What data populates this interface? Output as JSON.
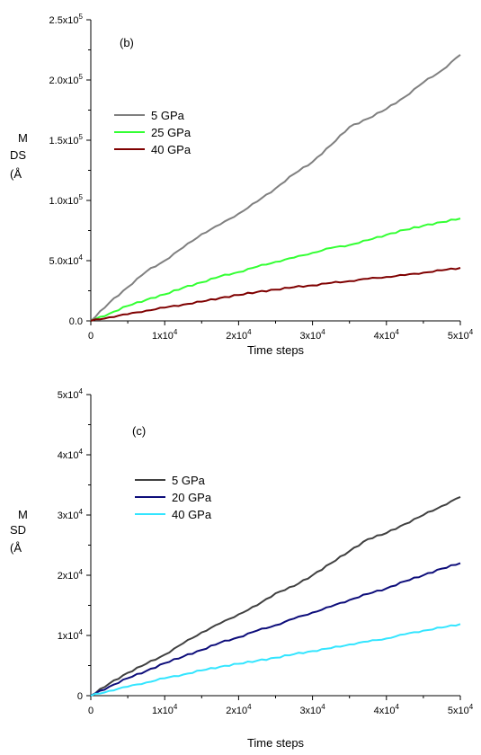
{
  "chart_data": [
    {
      "type": "line",
      "panel_label": "(b)",
      "xlabel": "Time steps",
      "ylabel_lines": [
        "M",
        "DS",
        "(Å"
      ],
      "xlim": [
        0,
        50000
      ],
      "ylim": [
        0,
        250000
      ],
      "x_tick_labels": [
        "0",
        "1x10^4",
        "2x10^4",
        "3x10^4",
        "4x10^4",
        "5x10^4"
      ],
      "x_tick_values": [
        0,
        10000,
        20000,
        30000,
        40000,
        50000
      ],
      "y_tick_labels": [
        "0.0",
        "5.0x10^4",
        "1.0x10^5",
        "1.5x10^5",
        "2.0x10^5",
        "2.5x10^5"
      ],
      "y_tick_values": [
        0,
        50000,
        100000,
        150000,
        200000,
        250000
      ],
      "legend_position": "upper-left",
      "grid": false,
      "x": [
        0,
        2500,
        5000,
        7500,
        10000,
        12500,
        15000,
        17500,
        20000,
        22500,
        25000,
        27500,
        30000,
        32500,
        35000,
        37500,
        40000,
        42500,
        45000,
        47500,
        50000
      ],
      "series": [
        {
          "name": "5 GPa",
          "color": "#808080",
          "values": [
            0,
            15000,
            28000,
            41000,
            50000,
            61000,
            72000,
            80000,
            89000,
            99000,
            110000,
            122000,
            132000,
            146000,
            161000,
            168000,
            176000,
            186000,
            198000,
            208000,
            221000
          ]
        },
        {
          "name": "25 GPa",
          "color": "#33ff33",
          "values": [
            0,
            6000,
            12500,
            17500,
            22000,
            27500,
            32000,
            37000,
            40500,
            45000,
            49000,
            52500,
            56500,
            60500,
            63000,
            67000,
            71500,
            75500,
            79000,
            82000,
            85000
          ]
        },
        {
          "name": "40 GPa",
          "color": "#7f0000",
          "values": [
            0,
            3000,
            5500,
            8500,
            11000,
            13500,
            16000,
            19000,
            21500,
            24000,
            26000,
            28000,
            29500,
            31500,
            33000,
            35000,
            36500,
            38000,
            40000,
            42000,
            44000
          ]
        }
      ]
    },
    {
      "type": "line",
      "panel_label": "(c)",
      "xlabel": "Time steps",
      "ylabel_lines": [
        "M",
        "SD",
        "(Å"
      ],
      "xlim": [
        0,
        50000
      ],
      "ylim": [
        0,
        50000
      ],
      "x_tick_labels": [
        "0",
        "1x10^4",
        "2x10^4",
        "3x10^4",
        "4x10^4",
        "5x10^4"
      ],
      "x_tick_values": [
        0,
        10000,
        20000,
        30000,
        40000,
        50000
      ],
      "y_tick_labels": [
        "0",
        "1x10^4",
        "2x10^4",
        "3x10^4",
        "4x10^4",
        "5x10^4"
      ],
      "y_tick_values": [
        0,
        10000,
        20000,
        30000,
        40000,
        50000
      ],
      "legend_position": "upper-left",
      "grid": false,
      "x": [
        0,
        2500,
        5000,
        7500,
        10000,
        12500,
        15000,
        17500,
        20000,
        22500,
        25000,
        27500,
        30000,
        32500,
        35000,
        37500,
        40000,
        42500,
        45000,
        47500,
        50000
      ],
      "series": [
        {
          "name": "5 GPa",
          "color": "#404040",
          "values": [
            0,
            2000,
            3800,
            5300,
            6800,
            8700,
            10500,
            12000,
            13500,
            15000,
            17000,
            18200,
            20000,
            22000,
            24000,
            26000,
            27000,
            28500,
            30000,
            31500,
            33000
          ]
        },
        {
          "name": "20 GPa",
          "color": "#0d0d7a",
          "values": [
            0,
            1500,
            2900,
            4100,
            5400,
            6500,
            7600,
            8800,
            9700,
            10800,
            11700,
            12800,
            13800,
            14800,
            15900,
            16900,
            17800,
            19000,
            20000,
            21100,
            22000
          ]
        },
        {
          "name": "40 GPa",
          "color": "#33e5ff",
          "values": [
            0,
            800,
            1500,
            2200,
            2900,
            3500,
            4200,
            4800,
            5300,
            5800,
            6300,
            6900,
            7400,
            7900,
            8500,
            9000,
            9500,
            10200,
            10800,
            11300,
            11900
          ]
        }
      ]
    }
  ]
}
